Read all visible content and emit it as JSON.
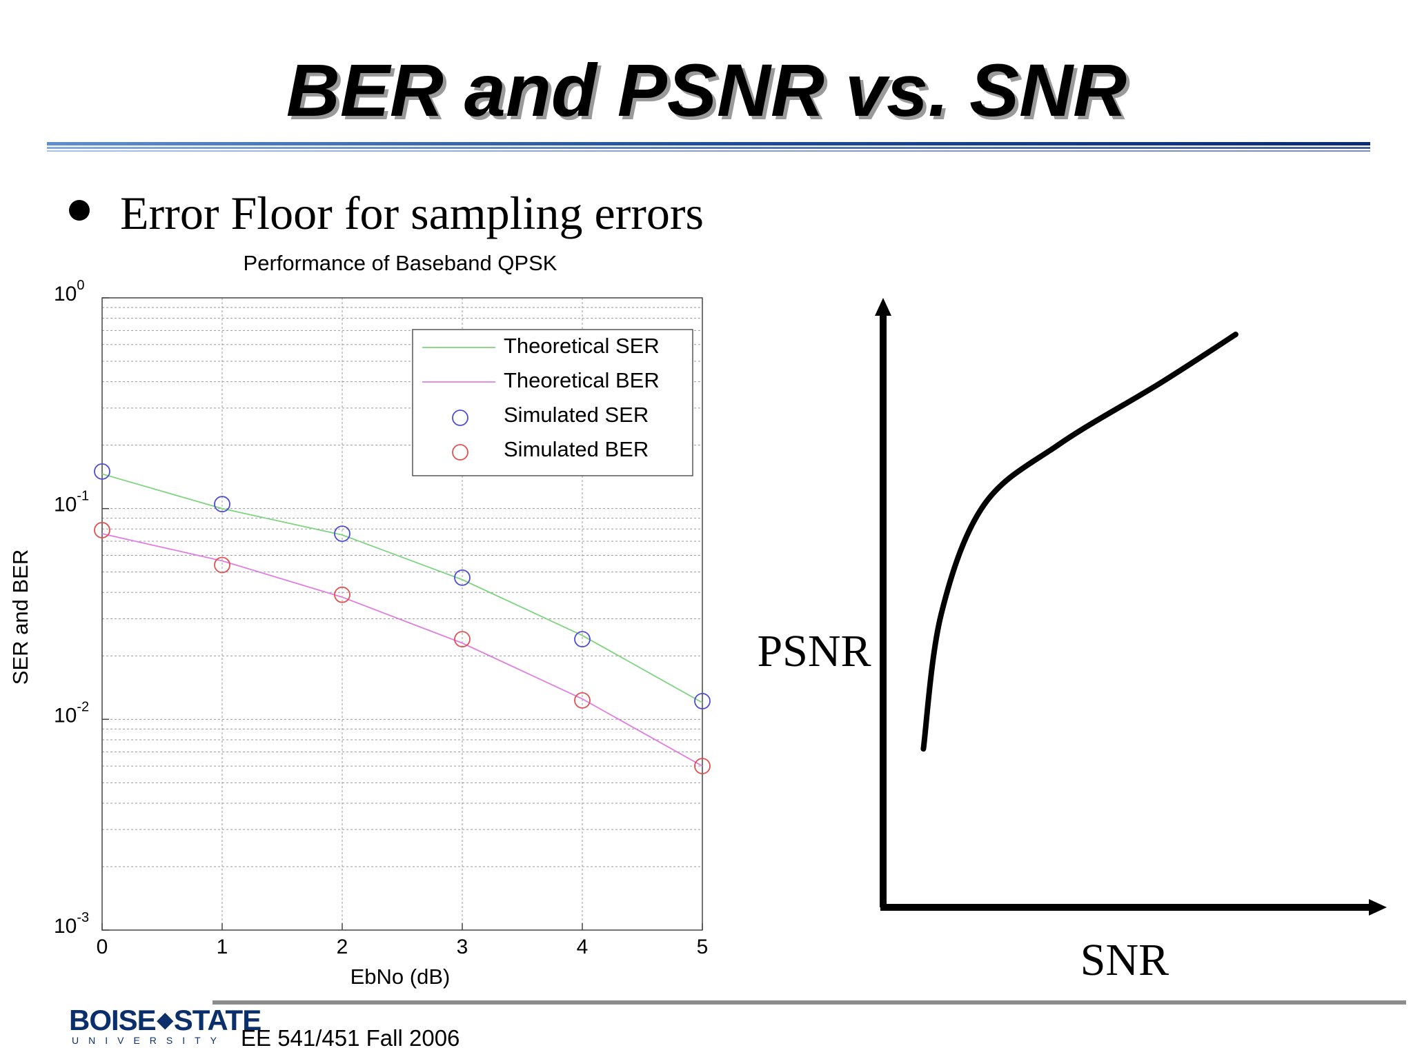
{
  "slide": {
    "title": "BER and PSNR vs. SNR",
    "bullet": "Error Floor for sampling errors",
    "footer": "EE 541/451 Fall 2006",
    "logo": {
      "main_left": "BOISE",
      "main_right": "STATE",
      "sub": "UNIVERSITY"
    },
    "colors": {
      "title_shadow": "#9a9a9a",
      "rule": "#1f4e9a",
      "logo": "#0b2f6b"
    }
  },
  "chart_data": [
    {
      "type": "line",
      "title": "Performance of Baseband QPSK",
      "xlabel": "EbNo (dB)",
      "ylabel": "SER and BER",
      "x": [
        0,
        1,
        2,
        3,
        4,
        5
      ],
      "xticks": [
        "0",
        "1",
        "2",
        "3",
        "4",
        "5"
      ],
      "xlim": [
        0,
        5
      ],
      "yscale": "log",
      "ylim": [
        0.001,
        1
      ],
      "yticks": [
        {
          "base": "10",
          "exp": "0"
        },
        {
          "base": "10",
          "exp": "-1"
        },
        {
          "base": "10",
          "exp": "-2"
        },
        {
          "base": "10",
          "exp": "-3"
        }
      ],
      "grid": true,
      "legend_position": "top-right",
      "series": [
        {
          "name": "Theoretical SER",
          "style": "line",
          "color": "#7ed37e",
          "values": [
            0.146,
            0.1,
            0.075,
            0.046,
            0.025,
            0.012
          ]
        },
        {
          "name": "Theoretical BER",
          "style": "line",
          "color": "#e07ee0",
          "values": [
            0.076,
            0.0565,
            0.038,
            0.023,
            0.0125,
            0.006
          ]
        },
        {
          "name": "Simulated SER",
          "style": "marker",
          "color": "#4a4ad8",
          "values": [
            0.15,
            0.105,
            0.076,
            0.047,
            0.024,
            0.0122
          ]
        },
        {
          "name": "Simulated BER",
          "style": "marker",
          "color": "#e05050",
          "values": [
            0.079,
            0.054,
            0.039,
            0.024,
            0.0123,
            0.006
          ]
        }
      ]
    },
    {
      "type": "line",
      "title": "",
      "xlabel": "SNR",
      "ylabel": "PSNR",
      "axes": "arrows-no-ticks",
      "series": [
        {
          "name": "",
          "color": "#000000",
          "x": [
            0.08,
            0.115,
            0.2,
            0.35,
            0.55,
            0.7
          ],
          "y": [
            0.26,
            0.48,
            0.66,
            0.76,
            0.86,
            0.94
          ]
        }
      ]
    }
  ]
}
